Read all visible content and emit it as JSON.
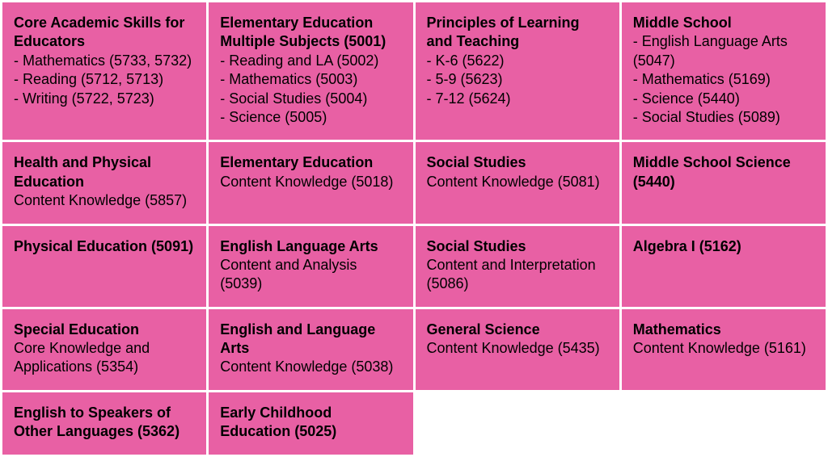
{
  "grid": {
    "cell_color": "#e860a4",
    "text_color": "#000000",
    "gap_color": "#ffffff",
    "rows": 5,
    "cols": 4
  },
  "cells": [
    {
      "title": "Core Academic Skills for Educators",
      "subs": [
        "- Mathematics (5733, 5732)",
        "- Reading (5712, 5713)",
        "- Writing (5722, 5723)"
      ]
    },
    {
      "title": "Elementary Education Multiple Subjects (5001)",
      "subs": [
        "- Reading and LA (5002)",
        "- Mathematics (5003)",
        "- Social Studies (5004)",
        "- Science (5005)"
      ]
    },
    {
      "title": "Principles of Learning and Teaching",
      "subs": [
        "- K-6 (5622)",
        "- 5-9 (5623)",
        "- 7-12 (5624)"
      ]
    },
    {
      "title": "Middle School",
      "subs": [
        "- English Language Arts (5047)",
        "- Mathematics (5169)",
        "- Science (5440)",
        "- Social Studies (5089)"
      ]
    },
    {
      "title": "Health and Physical Education",
      "subs": [
        "Content Knowledge (5857)"
      ]
    },
    {
      "title": "Elementary Education",
      "subs": [
        "Content Knowledge (5018)"
      ]
    },
    {
      "title": "Social Studies",
      "subs": [
        "Content Knowledge (5081)"
      ]
    },
    {
      "title": "Middle School Science (5440)",
      "subs": []
    },
    {
      "title": "Physical Education (5091)",
      "subs": []
    },
    {
      "title": "English Language Arts",
      "subs": [
        "Content and Analysis (5039)"
      ]
    },
    {
      "title": "Social Studies",
      "subs": [
        "Content and Interpretation (5086)"
      ]
    },
    {
      "title": "Algebra I (5162)",
      "subs": []
    },
    {
      "title": "Special Education",
      "subs": [
        "Core Knowledge and Applications (5354)"
      ]
    },
    {
      "title": "English and Language Arts",
      "subs": [
        "Content Knowledge (5038)"
      ]
    },
    {
      "title": "General Science",
      "subs": [
        "Content Knowledge (5435)"
      ]
    },
    {
      "title": "Mathematics",
      "subs": [
        "Content Knowledge (5161)"
      ]
    },
    {
      "title": "English to Speakers of Other Languages (5362)",
      "subs": []
    },
    {
      "title": "Early Childhood Education (5025)",
      "subs": []
    }
  ]
}
